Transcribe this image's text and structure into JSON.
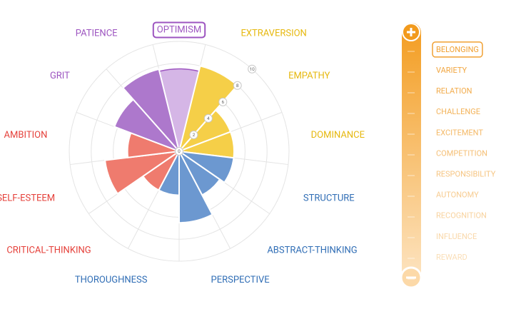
{
  "chart_data": {
    "type": "polar-area",
    "categories": [
      "OPTIMISM",
      "EXTRAVERSION",
      "EMPATHY",
      "DOMINANCE",
      "STRUCTURE",
      "ABSTRACT-THINKING",
      "PERSPECTIVE",
      "THOROUGHNESS",
      "CRITICAL-THINKING",
      "SELF-ESTEEM",
      "AMBITION",
      "GRIT",
      "PATIENCE"
    ],
    "values": [
      7.5,
      8,
      5,
      5,
      5,
      4.5,
      6.5,
      4,
      4,
      6.8,
      4.7,
      6.3,
      7.7
    ],
    "colors": [
      "#d5b6e6",
      "#f5cf48",
      "#f5cf48",
      "#f5cf48",
      "#6c98d0",
      "#6c98d0",
      "#6c98d0",
      "#6c98d0",
      "#ef7b6e",
      "#ef7b6e",
      "#ef7b6e",
      "#ad78cc",
      "#ad78cc"
    ],
    "label_colors": [
      "#9d55c0",
      "#e6b80e",
      "#e6b80e",
      "#e6b80e",
      "#2f6db5",
      "#2f6db5",
      "#2f6db5",
      "#2f6db5",
      "#e5403a",
      "#e5403a",
      "#e5403a",
      "#9d55c0",
      "#9d55c0"
    ],
    "rlim": [
      0,
      10
    ],
    "rticks": [
      0,
      2,
      4,
      6,
      8,
      10
    ]
  },
  "sidebar": {
    "items": [
      "BELONGING",
      "VARIETY",
      "RELATION",
      "CHALLENGE",
      "EXCITEMENT",
      "COMPETITION",
      "RESPONSIBILITY",
      "AUTONOMY",
      "RECOGNITION",
      "INFLUENCE",
      "REWARD"
    ]
  }
}
